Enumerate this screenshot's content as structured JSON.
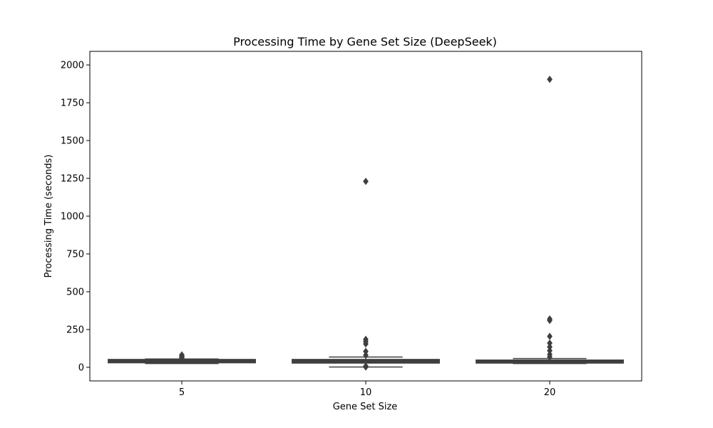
{
  "chart_data": {
    "type": "box",
    "title": "Processing Time by Gene Set Size (DeepSeek)",
    "xlabel": "Gene Set Size",
    "ylabel": "Processing Time (seconds)",
    "categories": [
      "5",
      "10",
      "20"
    ],
    "ylim": [
      -90,
      2090
    ],
    "yticks": [
      0,
      250,
      500,
      750,
      1000,
      1250,
      1500,
      1750,
      2000
    ],
    "grid": false,
    "boxes": [
      {
        "category": "5",
        "whisker_low": 25,
        "q1": 30,
        "median": 38,
        "q3": 52,
        "whisker_high": 55,
        "outliers": [
          62,
          68,
          75,
          82
        ]
      },
      {
        "category": "10",
        "whisker_low": 2,
        "q1": 28,
        "median": 40,
        "q3": 52,
        "whisker_high": 68,
        "outliers": [
          2,
          5,
          8,
          80,
          105,
          155,
          170,
          185,
          1230
        ]
      },
      {
        "category": "20",
        "whisker_low": 25,
        "q1": 28,
        "median": 38,
        "q3": 48,
        "whisker_high": 58,
        "outliers": [
          68,
          85,
          110,
          135,
          160,
          205,
          310,
          320,
          1905
        ]
      }
    ],
    "colors": {
      "box_fill": "#3f3f3f",
      "line": "#3f3f3f",
      "axes": "#000000"
    }
  }
}
